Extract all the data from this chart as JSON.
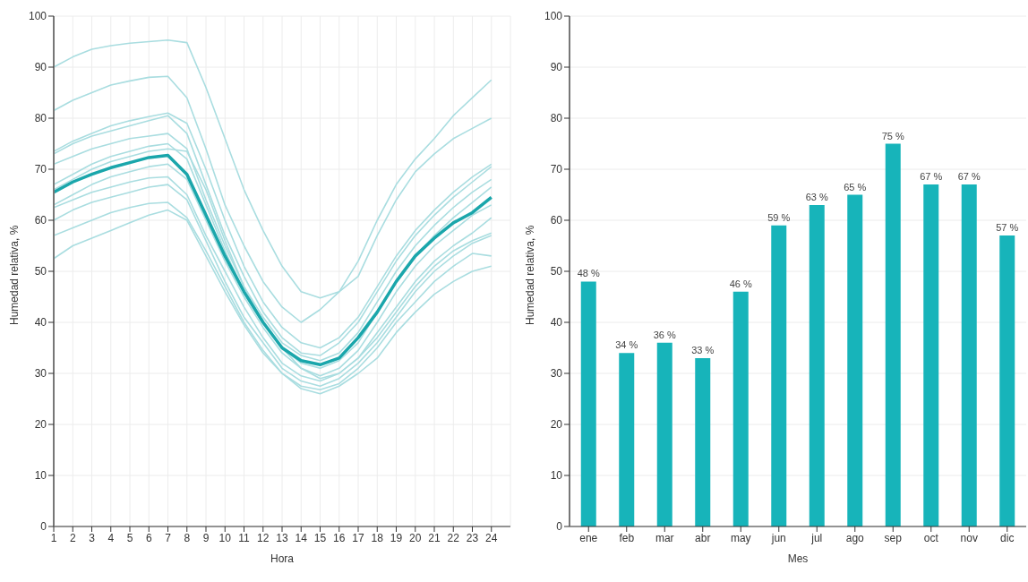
{
  "chart_data": [
    {
      "type": "line",
      "xlabel": "Hora",
      "ylabel": "Humedad relativa, %",
      "x": [
        1,
        2,
        3,
        4,
        5,
        6,
        7,
        8,
        9,
        10,
        11,
        12,
        13,
        14,
        15,
        16,
        17,
        18,
        19,
        20,
        21,
        22,
        23,
        24
      ],
      "xlim": [
        1,
        25
      ],
      "xticks": [
        1,
        2,
        3,
        4,
        5,
        6,
        7,
        8,
        9,
        10,
        11,
        12,
        13,
        14,
        15,
        16,
        17,
        18,
        19,
        20,
        21,
        22,
        23,
        24
      ],
      "ylim": [
        0,
        100
      ],
      "yticks": [
        0,
        10,
        20,
        30,
        40,
        50,
        60,
        70,
        80,
        90,
        100
      ],
      "grid": true,
      "legend": false,
      "marker": "none",
      "line_style": "solid",
      "series": [
        {
          "color": "#a9dde0",
          "values": [
            90,
            92,
            93.5,
            94.2,
            94.7,
            95,
            95.3,
            94.8,
            86,
            76,
            66,
            58,
            51,
            46,
            44.8,
            46,
            49,
            57,
            64,
            69.5,
            73,
            76,
            78,
            80
          ]
        },
        {
          "color": "#a9dde0",
          "values": [
            81.5,
            83.5,
            85,
            86.5,
            87.3,
            88,
            88.2,
            84,
            74,
            63,
            55,
            48,
            43,
            40,
            42.5,
            46,
            52,
            60,
            67,
            72,
            76,
            80.5,
            84,
            87.5
          ]
        },
        {
          "color": "#a9dde0",
          "values": [
            73.5,
            75.5,
            77,
            78.5,
            79.5,
            80.3,
            81,
            79,
            70,
            60,
            51,
            44,
            39,
            36,
            35,
            37,
            41,
            47,
            53,
            58,
            62,
            65.5,
            68.5,
            71
          ]
        },
        {
          "color": "#a9dde0",
          "values": [
            73,
            75,
            76.5,
            77.5,
            78.5,
            79.5,
            80.5,
            77,
            67,
            57,
            49,
            42,
            37,
            34,
            33.5,
            36,
            40,
            46,
            52,
            57,
            61,
            64.5,
            67.5,
            70.5
          ]
        },
        {
          "color": "#a9dde0",
          "values": [
            71,
            72.5,
            74,
            75,
            76,
            76.5,
            77,
            74,
            64,
            55,
            47,
            41,
            36,
            33.5,
            32.5,
            34,
            38,
            44,
            50,
            55,
            59,
            62.5,
            65.5,
            68
          ]
        },
        {
          "color": "#a9dde0",
          "values": [
            67,
            69,
            71,
            72.5,
            73.5,
            74.5,
            75,
            72,
            63,
            54,
            46,
            40,
            35,
            32,
            31,
            32.5,
            36,
            42,
            48,
            53,
            57,
            60.5,
            63.5,
            66.5
          ]
        },
        {
          "color": "#a9dde0",
          "values": [
            66,
            68,
            70,
            71.5,
            72.5,
            73.5,
            74,
            73.5,
            66,
            56,
            47,
            40,
            35,
            31,
            29.5,
            31,
            34.5,
            40,
            46,
            51,
            55,
            58,
            61,
            63
          ]
        },
        {
          "color": "#a9dde0",
          "values": [
            63,
            65,
            67,
            68.5,
            69.5,
            70.5,
            71,
            68,
            60,
            52,
            45,
            39,
            34,
            31,
            29,
            30,
            33,
            38,
            43,
            48,
            52,
            55,
            57.5,
            60.5
          ]
        },
        {
          "color": "#a9dde0",
          "values": [
            62.5,
            64,
            65.5,
            66.5,
            67.5,
            68.3,
            68.5,
            65,
            57,
            50,
            43,
            37,
            32,
            29.5,
            28.5,
            30,
            33,
            37,
            42,
            47,
            51,
            54,
            56,
            57.5
          ]
        },
        {
          "color": "#a9dde0",
          "values": [
            60,
            62,
            63.5,
            64.5,
            65.5,
            66.5,
            67,
            64,
            56,
            48,
            41,
            36,
            31,
            28.5,
            27.5,
            29,
            32,
            36,
            41,
            46,
            50,
            53,
            55.5,
            57
          ]
        },
        {
          "color": "#a9dde0",
          "values": [
            57,
            58.5,
            60,
            61.5,
            62.5,
            63.3,
            63.5,
            60.5,
            54,
            47,
            40,
            34.5,
            30,
            27.5,
            26.8,
            28,
            31,
            35,
            40,
            44,
            48,
            51,
            53.5,
            53
          ]
        },
        {
          "color": "#a9dde0",
          "values": [
            52.5,
            55,
            56.5,
            58,
            59.5,
            61,
            62,
            60,
            53,
            46,
            39.5,
            34,
            30,
            27,
            26,
            27.5,
            30,
            33,
            38,
            42,
            45.5,
            48,
            50,
            51
          ]
        },
        {
          "color": "#1aa6ab",
          "values": [
            65.5,
            67.5,
            69,
            70.3,
            71.3,
            72.3,
            72.7,
            69,
            61,
            53,
            46,
            40,
            35,
            32.5,
            31.7,
            33,
            37,
            42,
            48,
            53,
            56.5,
            59.5,
            61.5,
            64.5
          ]
        }
      ]
    },
    {
      "type": "bar",
      "xlabel": "Mes",
      "ylabel": "Humedad relativa, %",
      "categories": [
        "ene",
        "feb",
        "mar",
        "abr",
        "may",
        "jun",
        "jul",
        "ago",
        "sep",
        "oct",
        "nov",
        "dic"
      ],
      "values": [
        48,
        34,
        36,
        33,
        46,
        59,
        63,
        65,
        75,
        67,
        67,
        57
      ],
      "value_labels": [
        "48 %",
        "34 %",
        "36 %",
        "33 %",
        "46 %",
        "59 %",
        "63 %",
        "65 %",
        "75 %",
        "67 %",
        "67 %",
        "57 %"
      ],
      "color": "#17b4ba",
      "ylim": [
        0,
        100
      ],
      "yticks": [
        0,
        10,
        20,
        30,
        40,
        50,
        60,
        70,
        80,
        90,
        100
      ],
      "grid": "y",
      "legend": false
    }
  ]
}
